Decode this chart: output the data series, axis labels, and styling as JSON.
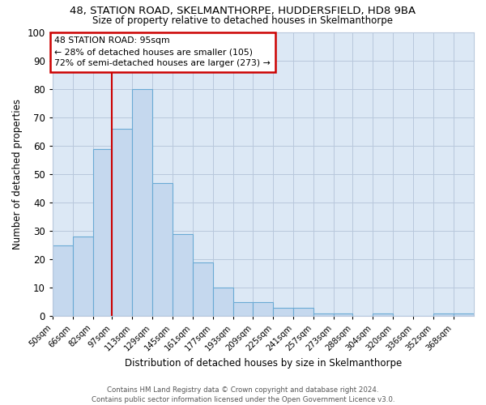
{
  "title1": "48, STATION ROAD, SKELMANTHORPE, HUDDERSFIELD, HD8 9BA",
  "title2": "Size of property relative to detached houses in Skelmanthorpe",
  "xlabel": "Distribution of detached houses by size in Skelmanthorpe",
  "ylabel": "Number of detached properties",
  "bin_labels": [
    "50sqm",
    "66sqm",
    "82sqm",
    "97sqm",
    "113sqm",
    "129sqm",
    "145sqm",
    "161sqm",
    "177sqm",
    "193sqm",
    "209sqm",
    "225sqm",
    "241sqm",
    "257sqm",
    "273sqm",
    "288sqm",
    "304sqm",
    "320sqm",
    "336sqm",
    "352sqm",
    "368sqm"
  ],
  "bin_left_edges": [
    50,
    66,
    82,
    97,
    113,
    129,
    145,
    161,
    177,
    193,
    209,
    225,
    241,
    257,
    273,
    288,
    304,
    320,
    336,
    352,
    368
  ],
  "bar_heights": [
    25,
    28,
    59,
    66,
    80,
    47,
    29,
    19,
    10,
    5,
    5,
    3,
    3,
    1,
    1,
    0,
    1,
    0,
    0,
    1,
    1
  ],
  "bar_color": "#c5d8ee",
  "bar_edge_color": "#6aaad4",
  "red_line_x": 97,
  "annotation_text": "48 STATION ROAD: 95sqm\n← 28% of detached houses are smaller (105)\n72% of semi-detached houses are larger (273) →",
  "annotation_box_color": "white",
  "annotation_box_edge_color": "#cc0000",
  "red_line_color": "#cc0000",
  "grid_color": "#b8c8dc",
  "background_color": "#dce8f5",
  "plot_bg_color": "#dce8f5",
  "footer_text": "Contains HM Land Registry data © Crown copyright and database right 2024.\nContains public sector information licensed under the Open Government Licence v3.0.",
  "ylim": [
    0,
    100
  ],
  "yticks": [
    0,
    10,
    20,
    30,
    40,
    50,
    60,
    70,
    80,
    90,
    100
  ]
}
